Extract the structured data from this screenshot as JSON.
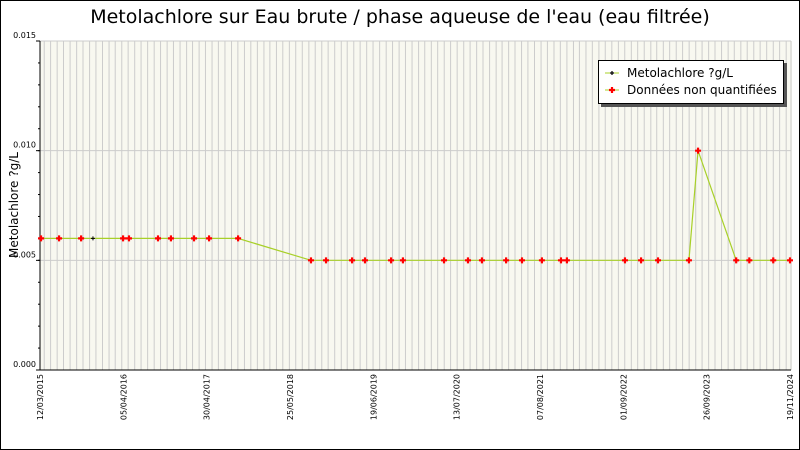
{
  "chart_data": {
    "type": "line",
    "title": "Metolachlore sur Eau brute / phase aqueuse de l'eau (eau filtrée)",
    "xlabel": "",
    "ylabel": "Metolachlore ?g/L",
    "xlim": [
      "2015-03-12",
      "2024-11-19"
    ],
    "ylim": [
      0,
      0.015
    ],
    "x_tick_labels": [
      "12/03/2015",
      "05/04/2016",
      "30/04/2017",
      "25/05/2018",
      "19/06/2019",
      "13/07/2020",
      "07/08/2021",
      "01/09/2022",
      "26/09/2023",
      "19/11/2024"
    ],
    "y_tick_labels": [
      "0.000",
      "0.005",
      "0.010",
      "0.015"
    ],
    "y_ticks": [
      0,
      0.005,
      0.01,
      0.015
    ],
    "grid": true,
    "legend_position": "top-right",
    "colors": {
      "line": "#a8d028",
      "quantified": "#000000",
      "non_quantified": "#ff0000",
      "plot_bg": "#f8f8f0",
      "grid": "#cccccc"
    },
    "series": [
      {
        "name": "Metolachlore ?g/L",
        "points": [
          {
            "x": "2015-03-17",
            "y": 0.006,
            "q": false
          },
          {
            "x": "2015-06-10",
            "y": 0.006,
            "q": false
          },
          {
            "x": "2015-09-22",
            "y": 0.006,
            "q": false
          },
          {
            "x": "2015-11-17",
            "y": 0.006,
            "q": true
          },
          {
            "x": "2016-04-07",
            "y": 0.006,
            "q": false
          },
          {
            "x": "2016-05-05",
            "y": 0.006,
            "q": false
          },
          {
            "x": "2016-09-19",
            "y": 0.006,
            "q": false
          },
          {
            "x": "2016-11-19",
            "y": 0.006,
            "q": false
          },
          {
            "x": "2017-03-08",
            "y": 0.006,
            "q": false
          },
          {
            "x": "2017-05-18",
            "y": 0.006,
            "q": false
          },
          {
            "x": "2017-10-02",
            "y": 0.006,
            "q": false
          },
          {
            "x": "2018-09-11",
            "y": 0.005,
            "q": false
          },
          {
            "x": "2018-11-21",
            "y": 0.005,
            "q": false
          },
          {
            "x": "2019-03-24",
            "y": 0.005,
            "q": false
          },
          {
            "x": "2019-05-24",
            "y": 0.005,
            "q": false
          },
          {
            "x": "2019-09-24",
            "y": 0.005,
            "q": false
          },
          {
            "x": "2019-11-19",
            "y": 0.005,
            "q": false
          },
          {
            "x": "2020-05-31",
            "y": 0.005,
            "q": false
          },
          {
            "x": "2020-09-21",
            "y": 0.005,
            "q": false
          },
          {
            "x": "2020-11-26",
            "y": 0.005,
            "q": false
          },
          {
            "x": "2021-03-20",
            "y": 0.005,
            "q": false
          },
          {
            "x": "2021-06-03",
            "y": 0.005,
            "q": false
          },
          {
            "x": "2021-09-05",
            "y": 0.005,
            "q": false
          },
          {
            "x": "2021-12-04",
            "y": 0.005,
            "q": false
          },
          {
            "x": "2022-01-01",
            "y": 0.005,
            "q": false
          },
          {
            "x": "2022-10-02",
            "y": 0.005,
            "q": false
          },
          {
            "x": "2022-12-17",
            "y": 0.005,
            "q": false
          },
          {
            "x": "2023-03-07",
            "y": 0.005,
            "q": false
          },
          {
            "x": "2023-07-31",
            "y": 0.005,
            "q": false
          },
          {
            "x": "2023-09-12",
            "y": 0.01,
            "q": false
          },
          {
            "x": "2024-03-10",
            "y": 0.005,
            "q": false
          },
          {
            "x": "2024-05-11",
            "y": 0.005,
            "q": false
          },
          {
            "x": "2024-09-01",
            "y": 0.005,
            "q": false
          },
          {
            "x": "2024-11-19",
            "y": 0.005,
            "q": false
          }
        ]
      }
    ],
    "legend": {
      "quantified": "Metolachlore ?g/L",
      "non_quantified": "Données non quantifiées"
    }
  }
}
